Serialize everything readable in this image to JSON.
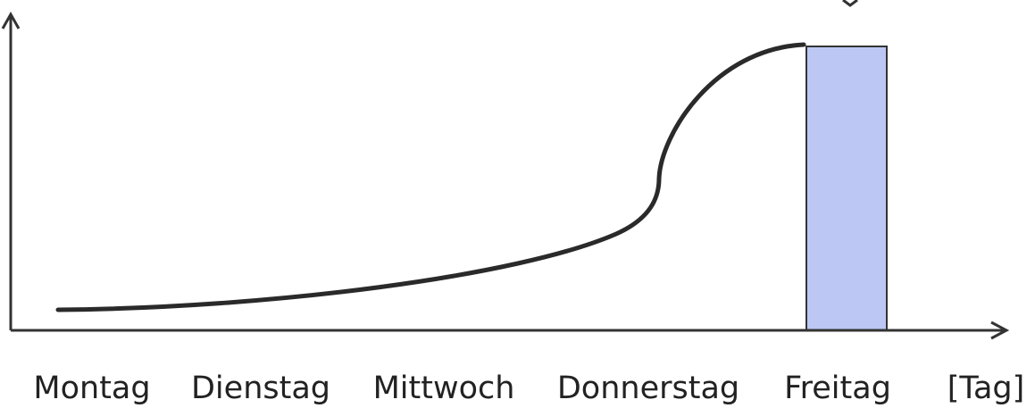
{
  "x_axis": {
    "categories": [
      "Montag",
      "Dienstag",
      "Mittwoch",
      "Donnerstag",
      "Freitag"
    ],
    "unit_label": "[Tag]"
  }
}
